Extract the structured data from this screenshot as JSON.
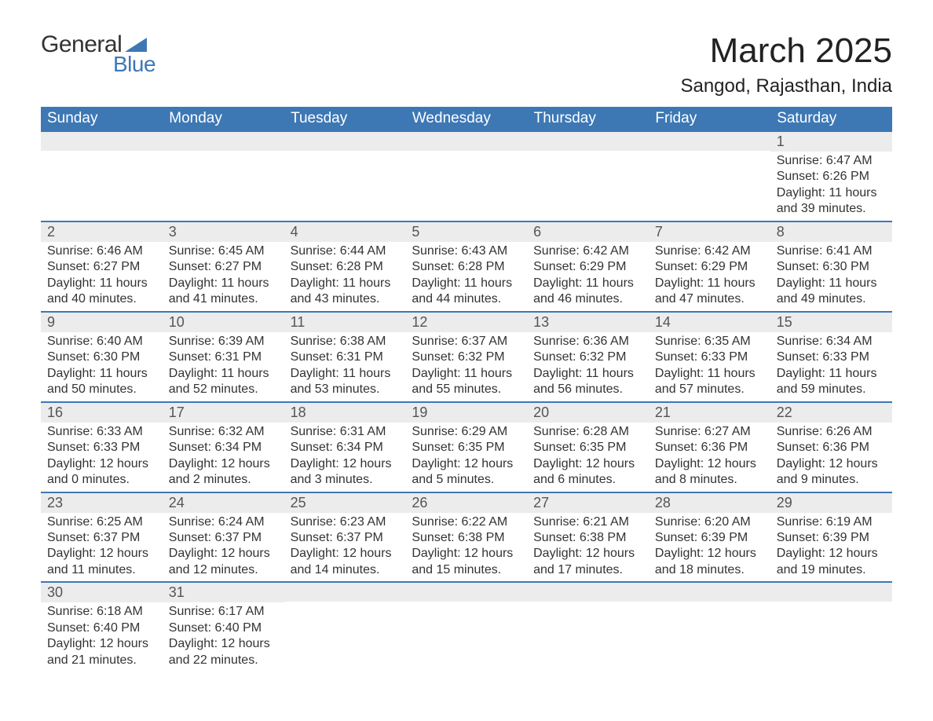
{
  "brand": {
    "line1": "General",
    "line2": "Blue",
    "triangle_color": "#3d78b5"
  },
  "header": {
    "title": "March 2025",
    "subtitle": "Sangod, Rajasthan, India"
  },
  "colors": {
    "header_bg": "#3d78b5",
    "header_text": "#ffffff",
    "daynum_bg": "#ececec",
    "text": "#333333",
    "row_border": "#3d78b5",
    "page_bg": "#ffffff"
  },
  "day_headers": [
    "Sunday",
    "Monday",
    "Tuesday",
    "Wednesday",
    "Thursday",
    "Friday",
    "Saturday"
  ],
  "weeks": [
    [
      {
        "empty": true
      },
      {
        "empty": true
      },
      {
        "empty": true
      },
      {
        "empty": true
      },
      {
        "empty": true
      },
      {
        "empty": true
      },
      {
        "day": "1",
        "sunrise": "Sunrise: 6:47 AM",
        "sunset": "Sunset: 6:26 PM",
        "daylight1": "Daylight: 11 hours",
        "daylight2": "and 39 minutes."
      }
    ],
    [
      {
        "day": "2",
        "sunrise": "Sunrise: 6:46 AM",
        "sunset": "Sunset: 6:27 PM",
        "daylight1": "Daylight: 11 hours",
        "daylight2": "and 40 minutes."
      },
      {
        "day": "3",
        "sunrise": "Sunrise: 6:45 AM",
        "sunset": "Sunset: 6:27 PM",
        "daylight1": "Daylight: 11 hours",
        "daylight2": "and 41 minutes."
      },
      {
        "day": "4",
        "sunrise": "Sunrise: 6:44 AM",
        "sunset": "Sunset: 6:28 PM",
        "daylight1": "Daylight: 11 hours",
        "daylight2": "and 43 minutes."
      },
      {
        "day": "5",
        "sunrise": "Sunrise: 6:43 AM",
        "sunset": "Sunset: 6:28 PM",
        "daylight1": "Daylight: 11 hours",
        "daylight2": "and 44 minutes."
      },
      {
        "day": "6",
        "sunrise": "Sunrise: 6:42 AM",
        "sunset": "Sunset: 6:29 PM",
        "daylight1": "Daylight: 11 hours",
        "daylight2": "and 46 minutes."
      },
      {
        "day": "7",
        "sunrise": "Sunrise: 6:42 AM",
        "sunset": "Sunset: 6:29 PM",
        "daylight1": "Daylight: 11 hours",
        "daylight2": "and 47 minutes."
      },
      {
        "day": "8",
        "sunrise": "Sunrise: 6:41 AM",
        "sunset": "Sunset: 6:30 PM",
        "daylight1": "Daylight: 11 hours",
        "daylight2": "and 49 minutes."
      }
    ],
    [
      {
        "day": "9",
        "sunrise": "Sunrise: 6:40 AM",
        "sunset": "Sunset: 6:30 PM",
        "daylight1": "Daylight: 11 hours",
        "daylight2": "and 50 minutes."
      },
      {
        "day": "10",
        "sunrise": "Sunrise: 6:39 AM",
        "sunset": "Sunset: 6:31 PM",
        "daylight1": "Daylight: 11 hours",
        "daylight2": "and 52 minutes."
      },
      {
        "day": "11",
        "sunrise": "Sunrise: 6:38 AM",
        "sunset": "Sunset: 6:31 PM",
        "daylight1": "Daylight: 11 hours",
        "daylight2": "and 53 minutes."
      },
      {
        "day": "12",
        "sunrise": "Sunrise: 6:37 AM",
        "sunset": "Sunset: 6:32 PM",
        "daylight1": "Daylight: 11 hours",
        "daylight2": "and 55 minutes."
      },
      {
        "day": "13",
        "sunrise": "Sunrise: 6:36 AM",
        "sunset": "Sunset: 6:32 PM",
        "daylight1": "Daylight: 11 hours",
        "daylight2": "and 56 minutes."
      },
      {
        "day": "14",
        "sunrise": "Sunrise: 6:35 AM",
        "sunset": "Sunset: 6:33 PM",
        "daylight1": "Daylight: 11 hours",
        "daylight2": "and 57 minutes."
      },
      {
        "day": "15",
        "sunrise": "Sunrise: 6:34 AM",
        "sunset": "Sunset: 6:33 PM",
        "daylight1": "Daylight: 11 hours",
        "daylight2": "and 59 minutes."
      }
    ],
    [
      {
        "day": "16",
        "sunrise": "Sunrise: 6:33 AM",
        "sunset": "Sunset: 6:33 PM",
        "daylight1": "Daylight: 12 hours",
        "daylight2": "and 0 minutes."
      },
      {
        "day": "17",
        "sunrise": "Sunrise: 6:32 AM",
        "sunset": "Sunset: 6:34 PM",
        "daylight1": "Daylight: 12 hours",
        "daylight2": "and 2 minutes."
      },
      {
        "day": "18",
        "sunrise": "Sunrise: 6:31 AM",
        "sunset": "Sunset: 6:34 PM",
        "daylight1": "Daylight: 12 hours",
        "daylight2": "and 3 minutes."
      },
      {
        "day": "19",
        "sunrise": "Sunrise: 6:29 AM",
        "sunset": "Sunset: 6:35 PM",
        "daylight1": "Daylight: 12 hours",
        "daylight2": "and 5 minutes."
      },
      {
        "day": "20",
        "sunrise": "Sunrise: 6:28 AM",
        "sunset": "Sunset: 6:35 PM",
        "daylight1": "Daylight: 12 hours",
        "daylight2": "and 6 minutes."
      },
      {
        "day": "21",
        "sunrise": "Sunrise: 6:27 AM",
        "sunset": "Sunset: 6:36 PM",
        "daylight1": "Daylight: 12 hours",
        "daylight2": "and 8 minutes."
      },
      {
        "day": "22",
        "sunrise": "Sunrise: 6:26 AM",
        "sunset": "Sunset: 6:36 PM",
        "daylight1": "Daylight: 12 hours",
        "daylight2": "and 9 minutes."
      }
    ],
    [
      {
        "day": "23",
        "sunrise": "Sunrise: 6:25 AM",
        "sunset": "Sunset: 6:37 PM",
        "daylight1": "Daylight: 12 hours",
        "daylight2": "and 11 minutes."
      },
      {
        "day": "24",
        "sunrise": "Sunrise: 6:24 AM",
        "sunset": "Sunset: 6:37 PM",
        "daylight1": "Daylight: 12 hours",
        "daylight2": "and 12 minutes."
      },
      {
        "day": "25",
        "sunrise": "Sunrise: 6:23 AM",
        "sunset": "Sunset: 6:37 PM",
        "daylight1": "Daylight: 12 hours",
        "daylight2": "and 14 minutes."
      },
      {
        "day": "26",
        "sunrise": "Sunrise: 6:22 AM",
        "sunset": "Sunset: 6:38 PM",
        "daylight1": "Daylight: 12 hours",
        "daylight2": "and 15 minutes."
      },
      {
        "day": "27",
        "sunrise": "Sunrise: 6:21 AM",
        "sunset": "Sunset: 6:38 PM",
        "daylight1": "Daylight: 12 hours",
        "daylight2": "and 17 minutes."
      },
      {
        "day": "28",
        "sunrise": "Sunrise: 6:20 AM",
        "sunset": "Sunset: 6:39 PM",
        "daylight1": "Daylight: 12 hours",
        "daylight2": "and 18 minutes."
      },
      {
        "day": "29",
        "sunrise": "Sunrise: 6:19 AM",
        "sunset": "Sunset: 6:39 PM",
        "daylight1": "Daylight: 12 hours",
        "daylight2": "and 19 minutes."
      }
    ],
    [
      {
        "day": "30",
        "sunrise": "Sunrise: 6:18 AM",
        "sunset": "Sunset: 6:40 PM",
        "daylight1": "Daylight: 12 hours",
        "daylight2": "and 21 minutes."
      },
      {
        "day": "31",
        "sunrise": "Sunrise: 6:17 AM",
        "sunset": "Sunset: 6:40 PM",
        "daylight1": "Daylight: 12 hours",
        "daylight2": "and 22 minutes."
      },
      {
        "empty": true
      },
      {
        "empty": true
      },
      {
        "empty": true
      },
      {
        "empty": true
      },
      {
        "empty": true
      }
    ]
  ]
}
